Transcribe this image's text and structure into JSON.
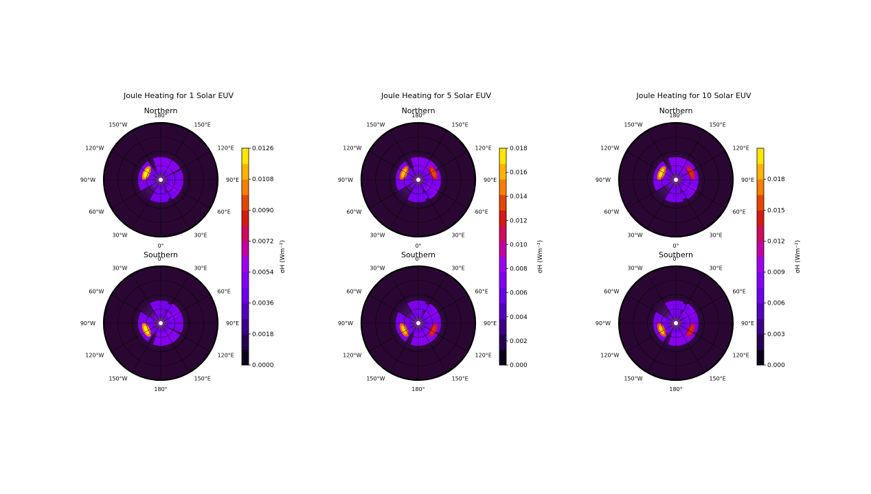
{
  "chart_data": {
    "type": "heatmap",
    "subtype": "polar-map",
    "panels": [
      {
        "title": "Joule Heating for 1 Solar EUV",
        "colorbar": {
          "label": "σH (Wm⁻²)",
          "vmin": 0.0,
          "vmax": 0.0126,
          "ticks": [
            "0.0000",
            "0.0018",
            "0.0036",
            "0.0054",
            "0.0072",
            "0.0090",
            "0.0108",
            "0.0126"
          ],
          "tick_values": [
            0.0,
            0.0018,
            0.0036,
            0.0054,
            0.0072,
            0.009,
            0.0108,
            0.0126
          ]
        },
        "hemispheres": [
          {
            "name": "Northern",
            "lon_labels": [
              "180°",
              "150°E",
              "120°E",
              "90°E",
              "60°E",
              "30°E",
              "0°",
              "30°W",
              "60°W",
              "90°W",
              "120°W",
              "150°W"
            ],
            "hotspots": [
              0.0124
            ]
          },
          {
            "name": "Southern",
            "lon_labels": [
              "0°",
              "30°E",
              "60°E",
              "90°E",
              "120°E",
              "150°E",
              "180°",
              "150°W",
              "120°W",
              "90°W",
              "60°W",
              "30°W"
            ],
            "hotspots": [
              0.0122
            ]
          }
        ]
      },
      {
        "title": "Joule Heating for 5 Solar EUV",
        "colorbar": {
          "label": "σH (Wm⁻²)",
          "vmin": 0.0,
          "vmax": 0.018,
          "ticks": [
            "0.000",
            "0.002",
            "0.004",
            "0.006",
            "0.008",
            "0.010",
            "0.012",
            "0.014",
            "0.016",
            "0.018"
          ],
          "tick_values": [
            0.0,
            0.002,
            0.004,
            0.006,
            0.008,
            0.01,
            0.012,
            0.014,
            0.016,
            0.018
          ]
        },
        "hemispheres": [
          {
            "name": "Northern",
            "lon_labels": [
              "180°",
              "150°E",
              "120°E",
              "90°E",
              "60°E",
              "30°E",
              "0°",
              "30°W",
              "60°W",
              "90°W",
              "120°W",
              "150°W"
            ],
            "hotspots": [
              0.0165,
              0.0135
            ]
          },
          {
            "name": "Southern",
            "lon_labels": [
              "0°",
              "30°E",
              "60°E",
              "90°E",
              "120°E",
              "150°E",
              "180°",
              "150°W",
              "120°W",
              "90°W",
              "60°W",
              "30°W"
            ],
            "hotspots": [
              0.0165,
              0.013
            ]
          }
        ]
      },
      {
        "title": "Joule Heating for 10 Solar EUV",
        "colorbar": {
          "label": "σH (Wm⁻²)",
          "vmin": 0.0,
          "vmax": 0.021,
          "ticks": [
            "0.000",
            "0.003",
            "0.006",
            "0.009",
            "0.012",
            "0.015",
            "0.018"
          ],
          "tick_values": [
            0.0,
            0.003,
            0.006,
            0.009,
            0.012,
            0.015,
            0.018
          ]
        },
        "hemispheres": [
          {
            "name": "Northern",
            "lon_labels": [
              "180°",
              "150°E",
              "120°E",
              "90°E",
              "60°E",
              "30°E",
              "0°",
              "30°W",
              "60°W",
              "90°W",
              "120°W",
              "150°W"
            ],
            "hotspots": [
              0.02,
              0.015
            ]
          },
          {
            "name": "Southern",
            "lon_labels": [
              "0°",
              "30°E",
              "60°E",
              "90°E",
              "120°E",
              "150°E",
              "180°",
              "150°W",
              "120°W",
              "90°W",
              "60°W",
              "30°W"
            ],
            "hotspots": [
              0.019,
              0.015
            ]
          }
        ]
      }
    ]
  }
}
